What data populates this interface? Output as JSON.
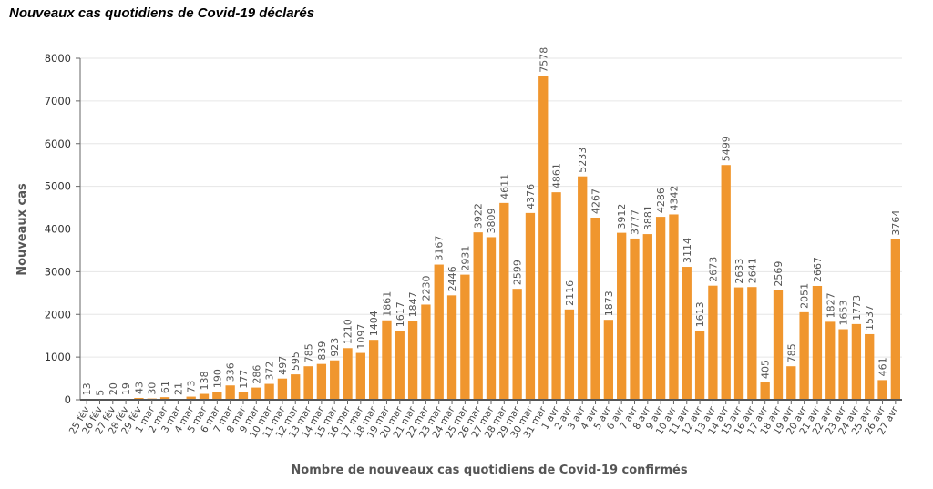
{
  "page": {
    "title": "Nouveaux cas quotidiens de Covid-19 déclarés"
  },
  "chart_data": {
    "type": "bar",
    "xlabel": "Nombre de nouveaux cas quotidiens de Covid-19 confirmés",
    "ylabel": "Nouveaux cas",
    "ylim": [
      0,
      8000
    ],
    "yticks": [
      0,
      1000,
      2000,
      3000,
      4000,
      5000,
      6000,
      7000,
      8000
    ],
    "grid": true,
    "bar_color": "#f0962e",
    "categories": [
      "25 fév",
      "26 fév",
      "27 fév",
      "28 fév",
      "29 fév",
      "1 mar",
      "2 mar",
      "3 mar",
      "4 mar",
      "5 mar",
      "6 mar",
      "7 mar",
      "8 mar",
      "9 mar",
      "10 mar",
      "11 mar",
      "12 mar",
      "13 mar",
      "14 mar",
      "15 mar",
      "16 mar",
      "17 mar",
      "18 mar",
      "19 mar",
      "20 mar",
      "21 mar",
      "22 mar",
      "23 mar",
      "24 mar",
      "25 mar",
      "26 mar",
      "27 mar",
      "28 mar",
      "29 mar",
      "30 mar",
      "31 mar",
      "1 avr",
      "2 avr",
      "3 avr",
      "4 avr",
      "5 avr",
      "6 avr",
      "7 avr",
      "8 avr",
      "9 avr",
      "10 avr",
      "11 avr",
      "12 avr",
      "13 avr",
      "14 avr",
      "15 avr",
      "16 avr",
      "17 avr",
      "18 avr",
      "19 avr",
      "20 avr",
      "21 avr",
      "22 avr",
      "23 avr",
      "24 avr",
      "25 avr",
      "26 avr",
      "27 avr"
    ],
    "values": [
      13,
      5,
      20,
      19,
      43,
      30,
      61,
      21,
      73,
      138,
      190,
      336,
      177,
      286,
      372,
      497,
      595,
      785,
      839,
      923,
      1210,
      1097,
      1404,
      1861,
      1617,
      1847,
      2230,
      3167,
      2446,
      2931,
      3922,
      3809,
      4611,
      2599,
      4376,
      7578,
      4861,
      2116,
      5233,
      4267,
      1873,
      3912,
      3777,
      3881,
      4286,
      4342,
      3114,
      1613,
      2673,
      5499,
      2633,
      2641,
      405,
      2569,
      785,
      2051,
      2667,
      1827,
      1653,
      1773,
      1537,
      461,
      3764
    ]
  }
}
